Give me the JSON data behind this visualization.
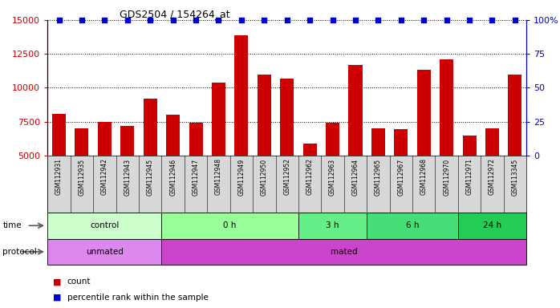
{
  "title": "GDS2504 / 154264_at",
  "samples": [
    "GSM112931",
    "GSM112935",
    "GSM112942",
    "GSM112943",
    "GSM112945",
    "GSM112946",
    "GSM112947",
    "GSM112948",
    "GSM112949",
    "GSM112950",
    "GSM112952",
    "GSM112962",
    "GSM112963",
    "GSM112964",
    "GSM112965",
    "GSM112967",
    "GSM112968",
    "GSM112970",
    "GSM112971",
    "GSM112972",
    "GSM113345"
  ],
  "counts": [
    8050,
    7000,
    7500,
    7200,
    9200,
    8000,
    7400,
    10400,
    13900,
    11000,
    10700,
    5900,
    7400,
    11700,
    7000,
    6950,
    11300,
    12100,
    6500,
    7000,
    11000
  ],
  "percentile_ranks": [
    100,
    100,
    100,
    100,
    100,
    100,
    100,
    100,
    100,
    100,
    100,
    100,
    100,
    100,
    100,
    100,
    100,
    100,
    100,
    100,
    100
  ],
  "bar_color": "#cc0000",
  "dot_color": "#0000cc",
  "ylim_left": [
    5000,
    15000
  ],
  "yticks_left": [
    5000,
    7500,
    10000,
    12500,
    15000
  ],
  "ylim_right": [
    0,
    100
  ],
  "yticks_right": [
    0,
    25,
    50,
    75,
    100
  ],
  "time_groups": [
    {
      "label": "control",
      "start": 0,
      "end": 5,
      "color": "#ccffcc"
    },
    {
      "label": "0 h",
      "start": 5,
      "end": 11,
      "color": "#99ff99"
    },
    {
      "label": "3 h",
      "start": 11,
      "end": 14,
      "color": "#66ee88"
    },
    {
      "label": "6 h",
      "start": 14,
      "end": 18,
      "color": "#44dd77"
    },
    {
      "label": "24 h",
      "start": 18,
      "end": 21,
      "color": "#22cc55"
    }
  ],
  "protocol_groups": [
    {
      "label": "unmated",
      "start": 0,
      "end": 5,
      "color": "#dd88ee"
    },
    {
      "label": "mated",
      "start": 5,
      "end": 21,
      "color": "#cc44cc"
    }
  ],
  "chart_bg": "#ffffff",
  "sample_band_bg": "#d8d8d8"
}
